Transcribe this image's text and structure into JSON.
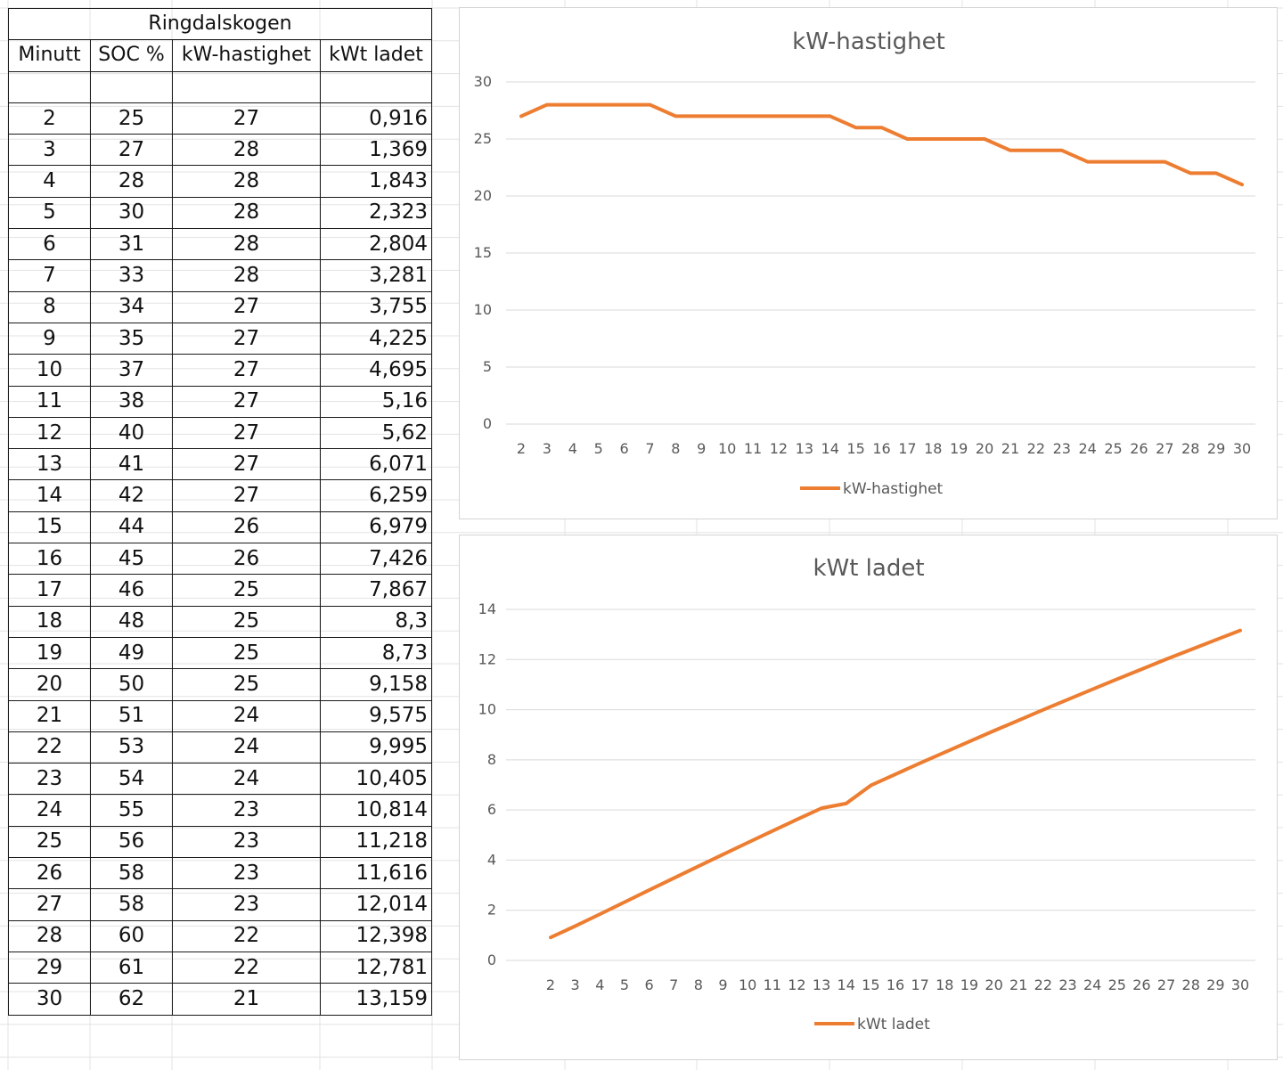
{
  "table": {
    "title": "Ringdalskogen",
    "headers": [
      "Minutt",
      "SOC %",
      "kW-hastighet",
      "kWt ladet"
    ],
    "rows": [
      [
        "2",
        "25",
        "27",
        "0,916"
      ],
      [
        "3",
        "27",
        "28",
        "1,369"
      ],
      [
        "4",
        "28",
        "28",
        "1,843"
      ],
      [
        "5",
        "30",
        "28",
        "2,323"
      ],
      [
        "6",
        "31",
        "28",
        "2,804"
      ],
      [
        "7",
        "33",
        "28",
        "3,281"
      ],
      [
        "8",
        "34",
        "27",
        "3,755"
      ],
      [
        "9",
        "35",
        "27",
        "4,225"
      ],
      [
        "10",
        "37",
        "27",
        "4,695"
      ],
      [
        "11",
        "38",
        "27",
        "5,16"
      ],
      [
        "12",
        "40",
        "27",
        "5,62"
      ],
      [
        "13",
        "41",
        "27",
        "6,071"
      ],
      [
        "14",
        "42",
        "27",
        "6,259"
      ],
      [
        "15",
        "44",
        "26",
        "6,979"
      ],
      [
        "16",
        "45",
        "26",
        "7,426"
      ],
      [
        "17",
        "46",
        "25",
        "7,867"
      ],
      [
        "18",
        "48",
        "25",
        "8,3"
      ],
      [
        "19",
        "49",
        "25",
        "8,73"
      ],
      [
        "20",
        "50",
        "25",
        "9,158"
      ],
      [
        "21",
        "51",
        "24",
        "9,575"
      ],
      [
        "22",
        "53",
        "24",
        "9,995"
      ],
      [
        "23",
        "54",
        "24",
        "10,405"
      ],
      [
        "24",
        "55",
        "23",
        "10,814"
      ],
      [
        "25",
        "56",
        "23",
        "11,218"
      ],
      [
        "26",
        "58",
        "23",
        "11,616"
      ],
      [
        "27",
        "58",
        "23",
        "12,014"
      ],
      [
        "28",
        "60",
        "22",
        "12,398"
      ],
      [
        "29",
        "61",
        "22",
        "12,781"
      ],
      [
        "30",
        "62",
        "21",
        "13,159"
      ]
    ]
  },
  "colors": {
    "series": "#ED7D31",
    "text": "#595959",
    "gridline": "#d9d9d9",
    "cell_border": "#1a1a1a"
  },
  "chart_data": [
    {
      "type": "line",
      "title": "kW-hastighet",
      "categories": [
        "2",
        "3",
        "4",
        "5",
        "6",
        "7",
        "8",
        "9",
        "10",
        "11",
        "12",
        "13",
        "14",
        "15",
        "16",
        "17",
        "18",
        "19",
        "20",
        "21",
        "22",
        "23",
        "24",
        "25",
        "26",
        "27",
        "28",
        "29",
        "30"
      ],
      "series": [
        {
          "name": "kW-hastighet",
          "values": [
            27,
            28,
            28,
            28,
            28,
            28,
            27,
            27,
            27,
            27,
            27,
            27,
            27,
            26,
            26,
            25,
            25,
            25,
            25,
            24,
            24,
            24,
            23,
            23,
            23,
            23,
            22,
            22,
            21
          ]
        }
      ],
      "xlabel": "",
      "ylabel": "",
      "ylim": [
        0,
        30
      ],
      "yticks": [
        0,
        5,
        10,
        15,
        20,
        25,
        30
      ],
      "grid": true,
      "legend": "bottom"
    },
    {
      "type": "line",
      "title": "kWt ladet",
      "categories": [
        "2",
        "3",
        "4",
        "5",
        "6",
        "7",
        "8",
        "9",
        "10",
        "11",
        "12",
        "13",
        "14",
        "15",
        "16",
        "17",
        "18",
        "19",
        "20",
        "21",
        "22",
        "23",
        "24",
        "25",
        "26",
        "27",
        "28",
        "29",
        "30"
      ],
      "series": [
        {
          "name": "kWt ladet",
          "values": [
            0.916,
            1.369,
            1.843,
            2.323,
            2.804,
            3.281,
            3.755,
            4.225,
            4.695,
            5.16,
            5.62,
            6.071,
            6.259,
            6.979,
            7.426,
            7.867,
            8.3,
            8.73,
            9.158,
            9.575,
            9.995,
            10.405,
            10.814,
            11.218,
            11.616,
            12.014,
            12.398,
            12.781,
            13.159
          ]
        }
      ],
      "xlabel": "",
      "ylabel": "",
      "ylim": [
        0,
        14
      ],
      "yticks": [
        0,
        2,
        4,
        6,
        8,
        10,
        12,
        14
      ],
      "grid": true,
      "legend": "bottom"
    }
  ]
}
